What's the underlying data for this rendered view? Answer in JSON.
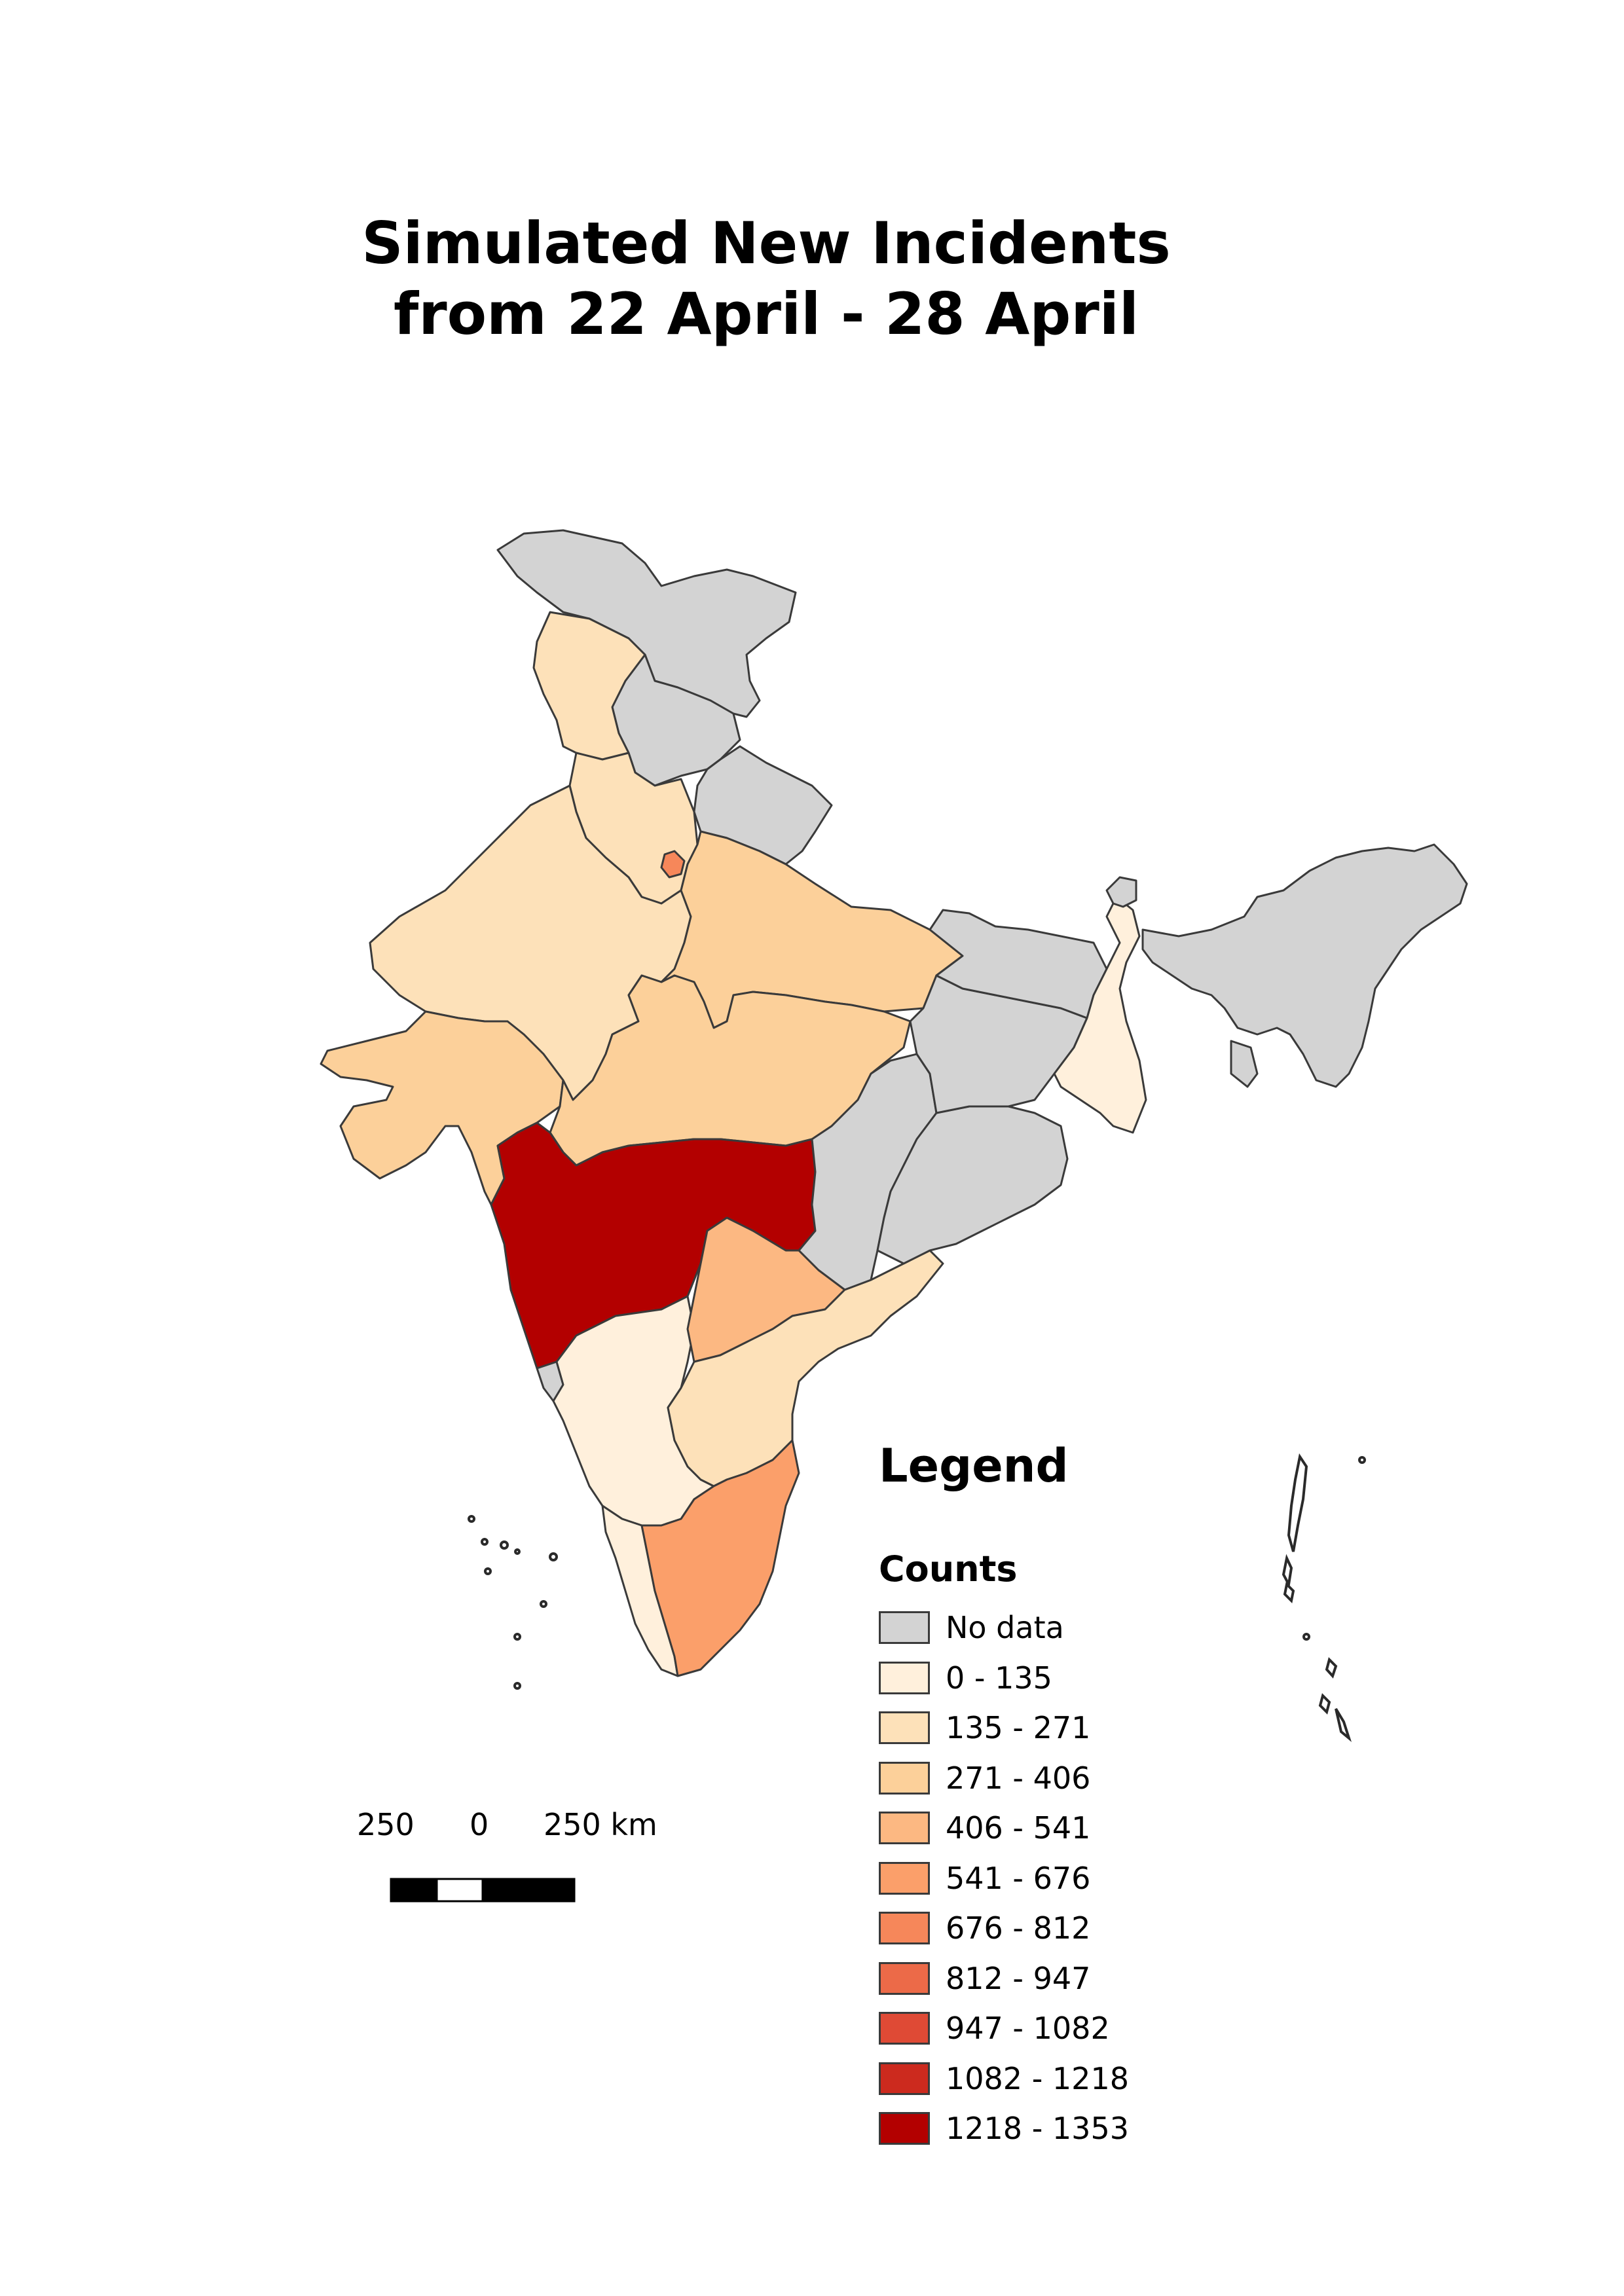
{
  "title": {
    "line1": "Simulated New Incidents",
    "line2": "from 22 April - 28 April"
  },
  "legend": {
    "heading": "Legend",
    "subheading": "Counts",
    "classes": [
      {
        "label": "No data",
        "color": "#d3d3d3"
      },
      {
        "label": "0 - 135",
        "color": "#fff0dc"
      },
      {
        "label": "135 - 271",
        "color": "#fde1b9"
      },
      {
        "label": "271 - 406",
        "color": "#fcd09a"
      },
      {
        "label": "406 - 541",
        "color": "#fcb882"
      },
      {
        "label": "541 - 676",
        "color": "#fb9f6a"
      },
      {
        "label": "676 - 812",
        "color": "#f6875a"
      },
      {
        "label": "812 - 947",
        "color": "#ec6a48"
      },
      {
        "label": "947 - 1082",
        "color": "#df4a35"
      },
      {
        "label": "1082 - 1218",
        "color": "#cc2a1e"
      },
      {
        "label": "1218 - 1353",
        "color": "#b30000"
      }
    ]
  },
  "scalebar": {
    "labels": [
      "250",
      "0",
      "250 km"
    ]
  }
}
